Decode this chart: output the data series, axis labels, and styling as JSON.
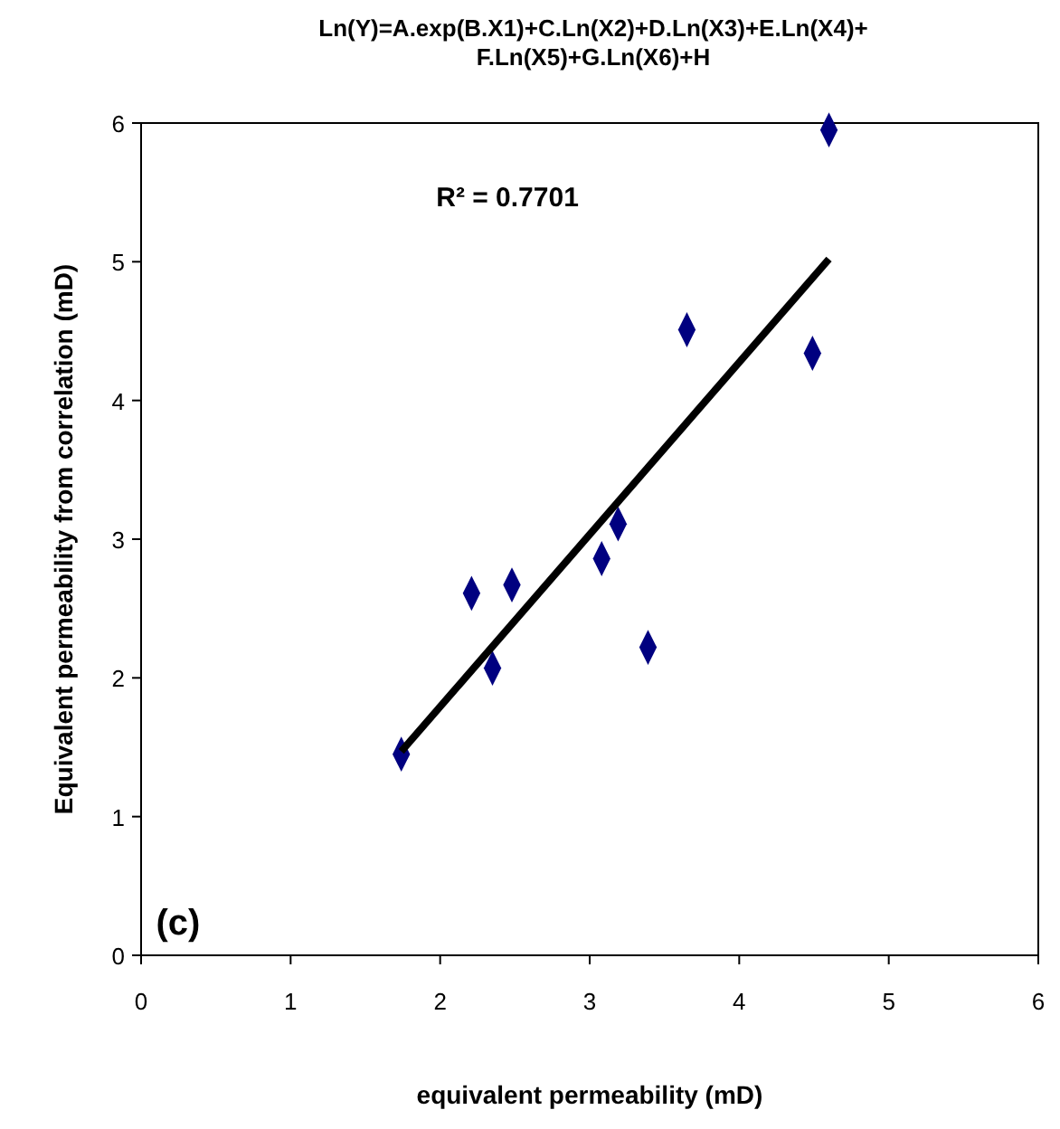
{
  "chart_data": {
    "type": "scatter",
    "title": "Ln(Y)=A.exp(B.X1)+C.Ln(X2)+D.Ln(X3)+E.Ln(X4)+\nF.Ln(X5)+G.Ln(X6)+H",
    "xlabel": "equivalent permeability (mD)",
    "ylabel": "Equivalent permeability from correlation (mD)",
    "xlim": [
      0,
      6
    ],
    "ylim": [
      0,
      6
    ],
    "xticks": [
      0,
      1,
      2,
      3,
      4,
      5,
      6
    ],
    "yticks": [
      0,
      1,
      2,
      3,
      4,
      5,
      6
    ],
    "annotations": [
      "R² = 0.7701",
      "(c)"
    ],
    "series": [
      {
        "marker": "diamond",
        "color": "#000080",
        "x": [
          4.6,
          3.65,
          4.49,
          3.19,
          3.08,
          2.21,
          2.48,
          3.39,
          2.35,
          1.74
        ],
        "values": [
          5.95,
          4.51,
          4.34,
          3.11,
          2.86,
          2.61,
          2.67,
          2.22,
          2.07,
          1.45
        ]
      },
      {
        "type": "line",
        "color": "#000000",
        "x": [
          1.74,
          4.6
        ],
        "values": [
          1.47,
          5.02
        ]
      }
    ]
  }
}
